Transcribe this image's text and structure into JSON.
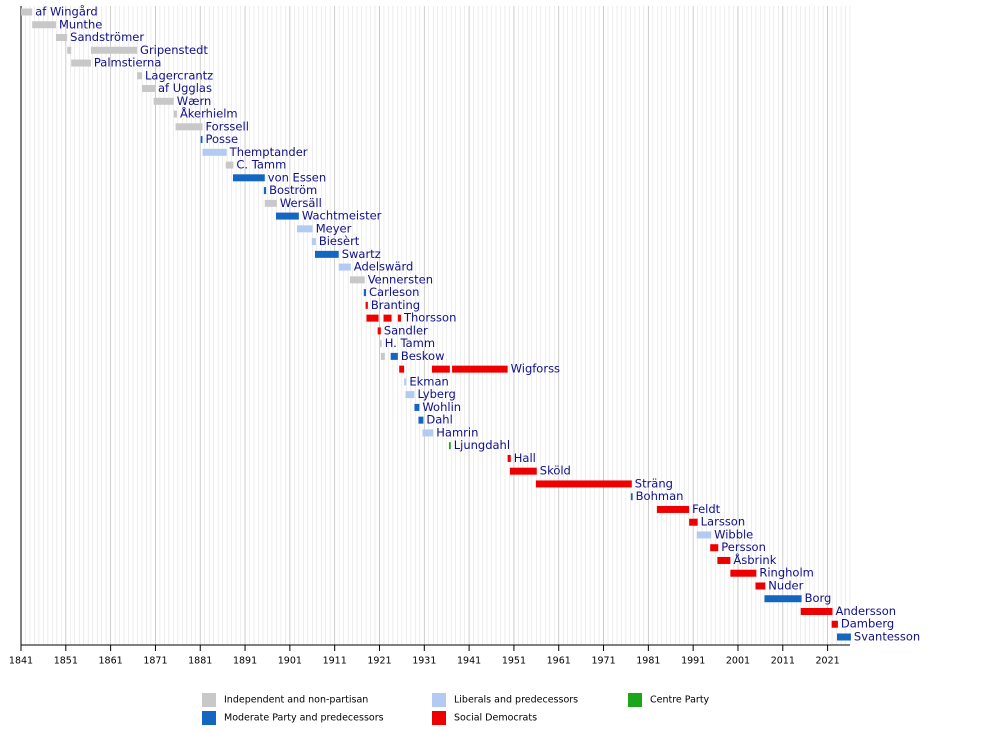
{
  "chart_data": {
    "type": "timeline",
    "xlim": [
      1841,
      2026
    ],
    "xticks": [
      1841,
      1851,
      1861,
      1871,
      1881,
      1891,
      1901,
      1911,
      1921,
      1931,
      1941,
      1951,
      1961,
      1971,
      1981,
      1991,
      2001,
      2011,
      2021
    ],
    "grid": true,
    "parties": [
      {
        "name": "Independent and non-partisan",
        "color": "#c8c8c8"
      },
      {
        "name": "Moderate Party and predecessors",
        "color": "#1566c0"
      },
      {
        "name": "Liberals and predecessors",
        "color": "#b3cbf2"
      },
      {
        "name": "Social Democrats",
        "color": "#ee0000"
      },
      {
        "name": "Centre Party",
        "color": "#1aa51a"
      }
    ],
    "rows": [
      {
        "name": "af Wingård",
        "segments": [
          {
            "start": 1841,
            "end": 1843.5,
            "party": 0
          }
        ]
      },
      {
        "name": "Munthe",
        "segments": [
          {
            "start": 1843.5,
            "end": 1848.8,
            "party": 0
          }
        ]
      },
      {
        "name": "Sandströmer",
        "segments": [
          {
            "start": 1848.8,
            "end": 1851.3,
            "party": 0
          }
        ]
      },
      {
        "name": "Gripenstedt",
        "segments": [
          {
            "start": 1851.3,
            "end": 1852.2,
            "party": 0
          },
          {
            "start": 1856.6,
            "end": 1866.9,
            "party": 0
          }
        ]
      },
      {
        "name": "Palmstierna",
        "segments": [
          {
            "start": 1852.2,
            "end": 1856.6,
            "party": 0
          }
        ]
      },
      {
        "name": "Lagercrantz",
        "segments": [
          {
            "start": 1866.9,
            "end": 1868
          }
        ]
      },
      {
        "name": "af Ugglas",
        "segments": [
          {
            "start": 1868,
            "end": 1870.9,
            "party": 0
          }
        ]
      },
      {
        "name": "Wærn",
        "segments": [
          {
            "start": 1870.6,
            "end": 1875.1,
            "party": 0
          }
        ]
      },
      {
        "name": "Åkerhielm",
        "segments": [
          {
            "start": 1875.1,
            "end": 1875.8,
            "party": 0
          }
        ]
      },
      {
        "name": "Forssell",
        "segments": [
          {
            "start": 1875.5,
            "end": 1881.5,
            "party": 0
          }
        ]
      },
      {
        "name": "Posse",
        "segments": [
          {
            "start": 1881.1,
            "end": 1881.5,
            "party": 1
          }
        ]
      },
      {
        "name": "Themptander",
        "segments": [
          {
            "start": 1881.5,
            "end": 1886.9,
            "party": 2
          }
        ]
      },
      {
        "name": "C. Tamm",
        "segments": [
          {
            "start": 1886.7,
            "end": 1888.4,
            "party": 0
          }
        ]
      },
      {
        "name": "von Essen",
        "segments": [
          {
            "start": 1888.3,
            "end": 1895.4,
            "party": 1
          }
        ]
      },
      {
        "name": "Boström",
        "segments": [
          {
            "start": 1895.2,
            "end": 1895.7,
            "party": 1
          }
        ]
      },
      {
        "name": "Wersäll",
        "segments": [
          {
            "start": 1895.4,
            "end": 1898.1,
            "party": 0
          }
        ]
      },
      {
        "name": "Wachtmeister",
        "segments": [
          {
            "start": 1897.9,
            "end": 1903,
            "party": 1
          }
        ]
      },
      {
        "name": "Meyer",
        "segments": [
          {
            "start": 1902.6,
            "end": 1906.1,
            "party": 2
          }
        ]
      },
      {
        "name": "Biesèrt",
        "segments": [
          {
            "start": 1905.9,
            "end": 1906.8,
            "party": 2
          }
        ]
      },
      {
        "name": "Swartz",
        "segments": [
          {
            "start": 1906.6,
            "end": 1911.9,
            "party": 1
          }
        ]
      },
      {
        "name": "Adelswärd",
        "segments": [
          {
            "start": 1911.9,
            "end": 1914.6,
            "party": 2
          }
        ]
      },
      {
        "name": "Vennersten",
        "segments": [
          {
            "start": 1914.4,
            "end": 1917.7,
            "party": 0
          }
        ]
      },
      {
        "name": "Carleson",
        "segments": [
          {
            "start": 1917.5,
            "end": 1918,
            "party": 1
          }
        ]
      },
      {
        "name": "Branting",
        "segments": [
          {
            "start": 1917.9,
            "end": 1918.4,
            "party": 3
          }
        ]
      },
      {
        "name": "Thorsson",
        "segments": [
          {
            "start": 1918.1,
            "end": 1920.8,
            "party": 3
          },
          {
            "start": 1921.9,
            "end": 1923.7,
            "party": 3
          },
          {
            "start": 1925.1,
            "end": 1925.8,
            "party": 3
          }
        ]
      },
      {
        "name": "Sandler",
        "segments": [
          {
            "start": 1920.6,
            "end": 1921.3,
            "party": 3
          }
        ]
      },
      {
        "name": "H. Tamm",
        "segments": [
          {
            "start": 1921.1,
            "end": 1921.5,
            "party": 0
          }
        ]
      },
      {
        "name": "Beskow",
        "segments": [
          {
            "start": 1921.3,
            "end": 1922.2,
            "party": 0
          },
          {
            "start": 1923.5,
            "end": 1925.1,
            "party": 1
          }
        ]
      },
      {
        "name": "Wigforss",
        "segments": [
          {
            "start": 1925.4,
            "end": 1926.5,
            "party": 3
          },
          {
            "start": 1932.7,
            "end": 1936.7,
            "party": 3
          },
          {
            "start": 1937.2,
            "end": 1949.6,
            "party": 3
          }
        ]
      },
      {
        "name": "Ekman",
        "segments": [
          {
            "start": 1926.5,
            "end": 1927,
            "party": 2
          }
        ]
      },
      {
        "name": "Lyberg",
        "segments": [
          {
            "start": 1926.8,
            "end": 1928.8,
            "party": 2
          }
        ]
      },
      {
        "name": "Wohlin",
        "segments": [
          {
            "start": 1928.8,
            "end": 1929.9,
            "party": 1
          }
        ]
      },
      {
        "name": "Dahl",
        "segments": [
          {
            "start": 1929.7,
            "end": 1930.8,
            "party": 1
          }
        ]
      },
      {
        "name": "Hamrin",
        "segments": [
          {
            "start": 1930.6,
            "end": 1933,
            "party": 2
          }
        ]
      },
      {
        "name": "Ljungdahl",
        "segments": [
          {
            "start": 1936.5,
            "end": 1936.9,
            "party": 4
          }
        ]
      },
      {
        "name": "Hall",
        "segments": [
          {
            "start": 1949.6,
            "end": 1950.3,
            "party": 3
          }
        ]
      },
      {
        "name": "Sköld",
        "segments": [
          {
            "start": 1950.1,
            "end": 1956.1,
            "party": 3
          }
        ]
      },
      {
        "name": "Sträng",
        "segments": [
          {
            "start": 1955.9,
            "end": 1977.3,
            "party": 3
          }
        ]
      },
      {
        "name": "Bohman",
        "segments": [
          {
            "start": 1977.1,
            "end": 1977.5,
            "party": 1
          }
        ]
      },
      {
        "name": "Feldt",
        "segments": [
          {
            "start": 1982.9,
            "end": 1990.1,
            "party": 3
          }
        ]
      },
      {
        "name": "Larsson",
        "segments": [
          {
            "start": 1990.1,
            "end": 1992,
            "party": 3
          }
        ]
      },
      {
        "name": "Wibble",
        "segments": [
          {
            "start": 1991.8,
            "end": 1995,
            "party": 2
          }
        ]
      },
      {
        "name": "Persson",
        "segments": [
          {
            "start": 1994.8,
            "end": 1996.6,
            "party": 3
          }
        ]
      },
      {
        "name": "Åsbrink",
        "segments": [
          {
            "start": 1996.4,
            "end": 1999.3,
            "party": 3
          }
        ]
      },
      {
        "name": "Ringholm",
        "segments": [
          {
            "start": 1999.3,
            "end": 2005.1,
            "party": 3
          }
        ]
      },
      {
        "name": "Nuder",
        "segments": [
          {
            "start": 2004.9,
            "end": 2007.1,
            "party": 3
          }
        ]
      },
      {
        "name": "Borg",
        "segments": [
          {
            "start": 2006.9,
            "end": 2015.2,
            "party": 1
          }
        ]
      },
      {
        "name": "Andersson",
        "segments": [
          {
            "start": 2015,
            "end": 2022.1,
            "party": 3
          }
        ]
      },
      {
        "name": "Damberg",
        "segments": [
          {
            "start": 2021.9,
            "end": 2023.3,
            "party": 3
          }
        ]
      },
      {
        "name": "Svantesson",
        "segments": [
          {
            "start": 2023.1,
            "end": 2026.2,
            "party": 1
          }
        ]
      }
    ]
  }
}
